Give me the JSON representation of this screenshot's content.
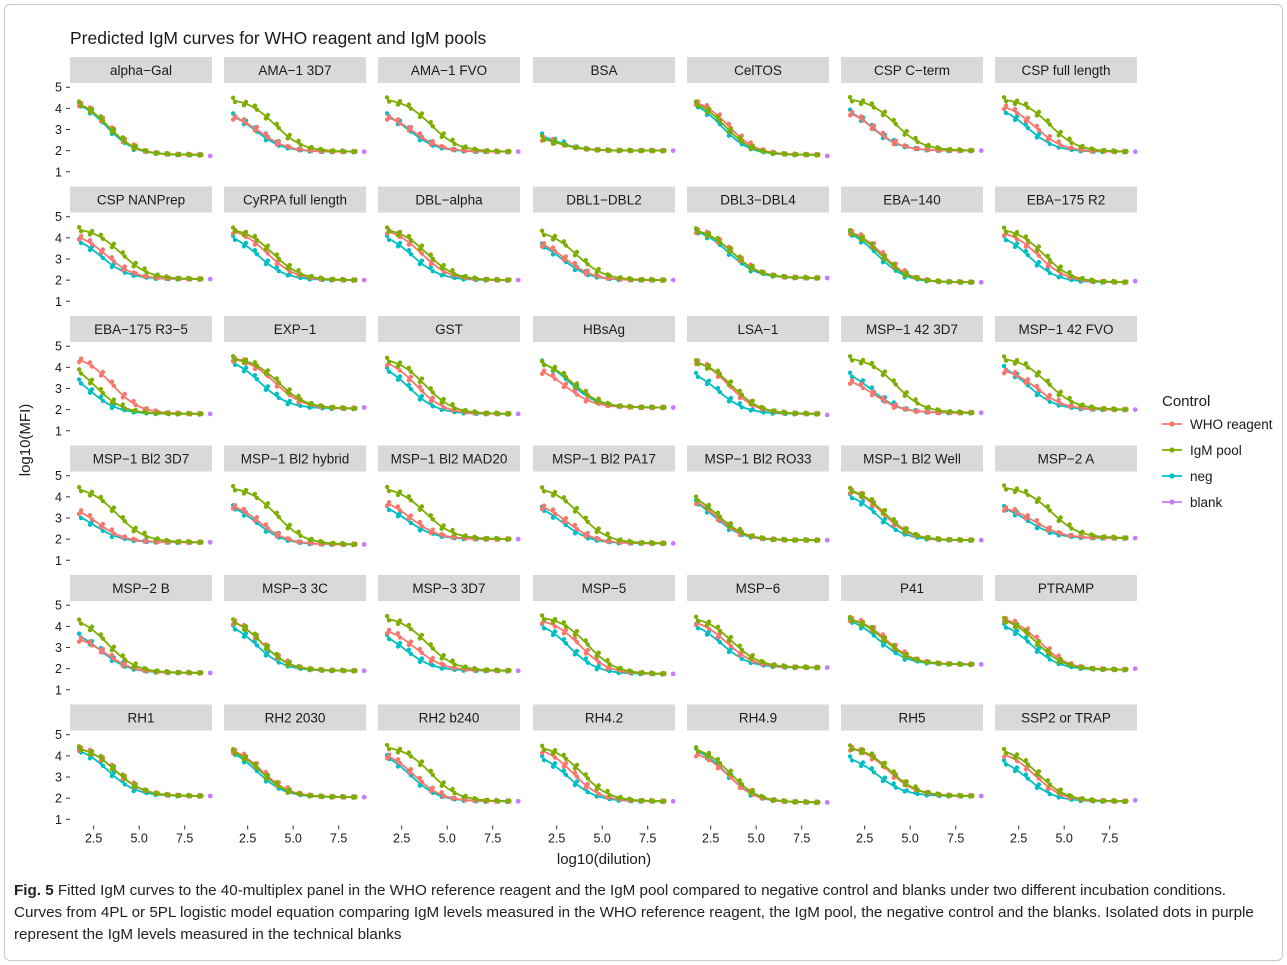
{
  "chart_data": {
    "type": "scatter",
    "title": "Predicted IgM curves for WHO reagent and IgM pools",
    "xlabel": "log10(dilution)",
    "ylabel": "log10(MFI)",
    "xticks": [
      "2.5",
      "5.0",
      "7.5"
    ],
    "yticks": [
      "1",
      "2",
      "3",
      "4",
      "5"
    ],
    "xlim": [
      1.2,
      9.0
    ],
    "ylim": [
      0.8,
      5.2
    ],
    "x_points": [
      1.7,
      2.3,
      2.9,
      3.5,
      4.1,
      4.7,
      5.3,
      5.9,
      6.5,
      7.1,
      7.7,
      8.3
    ],
    "blank_x": 8.9,
    "legend": {
      "title": "Control",
      "position": "right",
      "items": [
        {
          "key": "who",
          "label": "WHO reagent",
          "color": "#F8766D"
        },
        {
          "key": "igm",
          "label": "IgM pool",
          "color": "#7CAE00"
        },
        {
          "key": "neg",
          "label": "neg",
          "color": "#00BFC4"
        },
        {
          "key": "blank",
          "label": "blank",
          "color": "#C77CFF"
        }
      ]
    },
    "curve_model": "logistic: y = bottom + (top - bottom) / (1 + exp(slope * (x - midpoint)))",
    "panels": [
      {
        "name": "alpha−Gal",
        "bottom": 1.8,
        "blank": 1.75,
        "series": {
          "who": [
            4.5,
            3.3,
            1.3
          ],
          "igm": [
            4.5,
            3.3,
            1.3
          ],
          "neg": [
            4.5,
            3.2,
            1.3
          ]
        }
      },
      {
        "name": "AMA−1 3D7",
        "bottom": 1.95,
        "blank": 1.95,
        "series": {
          "who": [
            3.8,
            3.2,
            1.3
          ],
          "igm": [
            4.5,
            4.0,
            1.3
          ],
          "neg": [
            4.0,
            2.9,
            1.3
          ]
        }
      },
      {
        "name": "AMA−1 FVO",
        "bottom": 1.95,
        "blank": 1.95,
        "series": {
          "who": [
            3.8,
            3.2,
            1.3
          ],
          "igm": [
            4.5,
            4.1,
            1.3
          ],
          "neg": [
            4.0,
            2.9,
            1.3
          ]
        }
      },
      {
        "name": "BSA",
        "bottom": 2.0,
        "blank": 2.0,
        "series": {
          "who": [
            2.8,
            2.4,
            1.3
          ],
          "igm": [
            2.8,
            2.4,
            1.3
          ],
          "neg": [
            3.0,
            2.3,
            1.3
          ]
        }
      },
      {
        "name": "CelTOS",
        "bottom": 1.8,
        "blank": 1.75,
        "series": {
          "who": [
            4.5,
            3.5,
            1.3
          ],
          "igm": [
            4.5,
            3.3,
            1.3
          ],
          "neg": [
            4.5,
            3.1,
            1.3
          ]
        }
      },
      {
        "name": "CSP C−term",
        "bottom": 2.0,
        "blank": 2.0,
        "series": {
          "who": [
            4.1,
            3.0,
            1.3
          ],
          "igm": [
            4.5,
            4.2,
            1.3
          ],
          "neg": [
            4.2,
            2.9,
            1.3
          ]
        }
      },
      {
        "name": "CSP full length",
        "bottom": 1.95,
        "blank": 1.95,
        "series": {
          "who": [
            4.3,
            3.4,
            1.3
          ],
          "igm": [
            4.5,
            4.2,
            1.3
          ],
          "neg": [
            4.2,
            3.0,
            1.3
          ]
        }
      },
      {
        "name": "CSP NANPrep",
        "bottom": 2.05,
        "blank": 2.05,
        "series": {
          "who": [
            4.3,
            3.2,
            1.3
          ],
          "igm": [
            4.5,
            4.0,
            1.3
          ],
          "neg": [
            4.2,
            2.9,
            1.3
          ]
        }
      },
      {
        "name": "CyRPA full length",
        "bottom": 2.0,
        "blank": 2.0,
        "series": {
          "who": [
            4.5,
            3.6,
            1.3
          ],
          "igm": [
            4.5,
            3.9,
            1.3
          ],
          "neg": [
            4.3,
            3.1,
            1.3
          ]
        }
      },
      {
        "name": "DBL−alpha",
        "bottom": 2.0,
        "blank": 2.0,
        "series": {
          "who": [
            4.5,
            3.6,
            1.3
          ],
          "igm": [
            4.5,
            3.9,
            1.3
          ],
          "neg": [
            4.3,
            3.1,
            1.3
          ]
        }
      },
      {
        "name": "DBL1−DBL2",
        "bottom": 2.0,
        "blank": 2.0,
        "series": {
          "who": [
            4.0,
            3.0,
            1.3
          ],
          "igm": [
            4.4,
            3.6,
            1.3
          ],
          "neg": [
            4.0,
            2.8,
            1.3
          ]
        }
      },
      {
        "name": "DBL3−DBL4",
        "bottom": 2.1,
        "blank": 2.1,
        "series": {
          "who": [
            4.5,
            3.7,
            1.3
          ],
          "igm": [
            4.5,
            3.7,
            1.3
          ],
          "neg": [
            4.5,
            3.5,
            1.3
          ]
        }
      },
      {
        "name": "EBA−140",
        "bottom": 1.9,
        "blank": 1.9,
        "series": {
          "who": [
            4.5,
            3.5,
            1.3
          ],
          "igm": [
            4.5,
            3.4,
            1.3
          ],
          "neg": [
            4.5,
            3.2,
            1.3
          ]
        }
      },
      {
        "name": "EBA−175 R2",
        "bottom": 1.9,
        "blank": 1.95,
        "series": {
          "who": [
            4.4,
            3.6,
            1.3
          ],
          "igm": [
            4.5,
            3.9,
            1.3
          ],
          "neg": [
            4.3,
            3.1,
            1.3
          ]
        }
      },
      {
        "name": "EBA−175 R3−5",
        "bottom": 1.8,
        "blank": 1.8,
        "series": {
          "who": [
            4.6,
            3.5,
            1.3
          ],
          "igm": [
            4.4,
            2.6,
            1.3
          ],
          "neg": [
            4.0,
            2.3,
            1.3
          ]
        }
      },
      {
        "name": "EXP−1",
        "bottom": 2.05,
        "blank": 2.1,
        "series": {
          "who": [
            4.5,
            4.0,
            1.3
          ],
          "igm": [
            4.5,
            4.2,
            1.3
          ],
          "neg": [
            4.5,
            3.2,
            1.3
          ]
        }
      },
      {
        "name": "GST",
        "bottom": 1.8,
        "blank": 1.8,
        "series": {
          "who": [
            4.5,
            3.3,
            1.3
          ],
          "igm": [
            4.5,
            3.8,
            1.3
          ],
          "neg": [
            4.3,
            2.9,
            1.3
          ]
        }
      },
      {
        "name": "HBsAg",
        "bottom": 2.1,
        "blank": 2.1,
        "series": {
          "who": [
            4.1,
            3.0,
            1.3
          ],
          "igm": [
            4.4,
            3.4,
            1.3
          ],
          "neg": [
            4.5,
            3.2,
            1.3
          ]
        }
      },
      {
        "name": "LSA−1",
        "bottom": 1.8,
        "blank": 1.75,
        "series": {
          "who": [
            4.5,
            3.5,
            1.3
          ],
          "igm": [
            4.4,
            3.7,
            1.3
          ],
          "neg": [
            4.0,
            2.9,
            1.3
          ]
        }
      },
      {
        "name": "MSP−1 42 3D7",
        "bottom": 1.85,
        "blank": 1.85,
        "series": {
          "who": [
            3.6,
            3.0,
            1.3
          ],
          "igm": [
            4.5,
            4.2,
            1.3
          ],
          "neg": [
            4.0,
            2.9,
            1.3
          ]
        }
      },
      {
        "name": "MSP−1 42 FVO",
        "bottom": 2.0,
        "blank": 2.0,
        "series": {
          "who": [
            4.0,
            3.5,
            1.3
          ],
          "igm": [
            4.5,
            4.1,
            1.3
          ],
          "neg": [
            4.3,
            3.0,
            1.3
          ]
        }
      },
      {
        "name": "MSP−1 Bl2 3D7",
        "bottom": 1.85,
        "blank": 1.85,
        "series": {
          "who": [
            3.7,
            2.7,
            1.3
          ],
          "igm": [
            4.5,
            3.8,
            1.3
          ],
          "neg": [
            3.5,
            2.5,
            1.3
          ]
        }
      },
      {
        "name": "MSP−1 Bl2 hybrid",
        "bottom": 1.75,
        "blank": 1.75,
        "series": {
          "who": [
            3.8,
            3.2,
            1.3
          ],
          "igm": [
            4.5,
            4.1,
            1.3
          ],
          "neg": [
            3.8,
            3.0,
            1.3
          ]
        }
      },
      {
        "name": "MSP−1 Bl2 MAD20",
        "bottom": 2.0,
        "blank": 2.0,
        "series": {
          "who": [
            4.0,
            3.0,
            1.3
          ],
          "igm": [
            4.5,
            3.8,
            1.3
          ],
          "neg": [
            3.8,
            2.8,
            1.3
          ]
        }
      },
      {
        "name": "MSP−1 Bl2 PA17",
        "bottom": 1.8,
        "blank": 1.8,
        "series": {
          "who": [
            3.8,
            3.1,
            1.3
          ],
          "igm": [
            4.5,
            3.8,
            1.3
          ],
          "neg": [
            3.8,
            2.8,
            1.3
          ]
        }
      },
      {
        "name": "MSP−1 Bl2 RO33",
        "bottom": 1.95,
        "blank": 1.95,
        "series": {
          "who": [
            4.2,
            2.8,
            1.3
          ],
          "igm": [
            4.3,
            2.9,
            1.3
          ],
          "neg": [
            4.2,
            2.7,
            1.3
          ]
        }
      },
      {
        "name": "MSP−1 Bl2 Well",
        "bottom": 1.95,
        "blank": 1.95,
        "series": {
          "who": [
            4.5,
            3.5,
            1.3
          ],
          "igm": [
            4.5,
            3.6,
            1.3
          ],
          "neg": [
            4.3,
            3.2,
            1.3
          ]
        }
      },
      {
        "name": "MSP−2 A",
        "bottom": 2.05,
        "blank": 2.05,
        "series": {
          "who": [
            3.6,
            3.4,
            1.3
          ],
          "igm": [
            4.5,
            4.3,
            1.3
          ],
          "neg": [
            3.7,
            3.0,
            1.3
          ]
        }
      },
      {
        "name": "MSP−2 B",
        "bottom": 1.8,
        "blank": 1.8,
        "series": {
          "who": [
            3.6,
            3.2,
            1.3
          ],
          "igm": [
            4.5,
            3.3,
            1.3
          ],
          "neg": [
            3.9,
            2.9,
            1.3
          ]
        }
      },
      {
        "name": "MSP−3 3C",
        "bottom": 1.9,
        "blank": 1.9,
        "series": {
          "who": [
            4.5,
            3.3,
            1.3
          ],
          "igm": [
            4.5,
            3.3,
            1.3
          ],
          "neg": [
            4.3,
            3.0,
            1.3
          ]
        }
      },
      {
        "name": "MSP−3 3D7",
        "bottom": 1.9,
        "blank": 1.9,
        "series": {
          "who": [
            4.0,
            3.3,
            1.3
          ],
          "igm": [
            4.5,
            3.9,
            1.3
          ],
          "neg": [
            3.9,
            2.7,
            1.3
          ]
        }
      },
      {
        "name": "MSP−5",
        "bottom": 1.75,
        "blank": 1.75,
        "series": {
          "who": [
            4.4,
            3.8,
            1.3
          ],
          "igm": [
            4.5,
            4.2,
            1.3
          ],
          "neg": [
            4.3,
            3.2,
            1.3
          ]
        }
      },
      {
        "name": "MSP−6",
        "bottom": 2.05,
        "blank": 2.05,
        "series": {
          "who": [
            4.4,
            3.4,
            1.3
          ],
          "igm": [
            4.5,
            3.7,
            1.3
          ],
          "neg": [
            4.3,
            3.1,
            1.3
          ]
        }
      },
      {
        "name": "P41",
        "bottom": 2.2,
        "blank": 2.2,
        "series": {
          "who": [
            4.5,
            3.7,
            1.3
          ],
          "igm": [
            4.5,
            3.6,
            1.3
          ],
          "neg": [
            4.5,
            3.3,
            1.3
          ]
        }
      },
      {
        "name": "PTRAMP",
        "bottom": 1.95,
        "blank": 2.0,
        "series": {
          "who": [
            4.5,
            3.7,
            1.3
          ],
          "igm": [
            4.5,
            3.5,
            1.3
          ],
          "neg": [
            4.3,
            3.2,
            1.3
          ]
        }
      },
      {
        "name": "RH1",
        "bottom": 2.1,
        "blank": 2.1,
        "series": {
          "who": [
            4.5,
            3.7,
            1.3
          ],
          "igm": [
            4.5,
            3.7,
            1.3
          ],
          "neg": [
            4.5,
            3.3,
            1.3
          ]
        }
      },
      {
        "name": "RH2 2030",
        "bottom": 2.05,
        "blank": 2.05,
        "series": {
          "who": [
            4.5,
            3.3,
            1.3
          ],
          "igm": [
            4.5,
            3.2,
            1.3
          ],
          "neg": [
            4.5,
            3.0,
            1.3
          ]
        }
      },
      {
        "name": "RH2 b240",
        "bottom": 1.85,
        "blank": 1.85,
        "series": {
          "who": [
            4.3,
            3.2,
            1.3
          ],
          "igm": [
            4.5,
            4.1,
            1.3
          ],
          "neg": [
            4.3,
            3.0,
            1.3
          ]
        }
      },
      {
        "name": "RH4.2",
        "bottom": 1.85,
        "blank": 1.85,
        "series": {
          "who": [
            4.5,
            3.4,
            1.3
          ],
          "igm": [
            4.5,
            3.9,
            1.3
          ],
          "neg": [
            4.2,
            3.1,
            1.3
          ]
        }
      },
      {
        "name": "RH4.9",
        "bottom": 1.8,
        "blank": 1.8,
        "series": {
          "who": [
            4.3,
            3.5,
            1.3
          ],
          "igm": [
            4.5,
            3.6,
            1.3
          ],
          "neg": [
            4.5,
            3.4,
            1.3
          ]
        }
      },
      {
        "name": "RH5",
        "bottom": 2.1,
        "blank": 2.1,
        "series": {
          "who": [
            4.5,
            3.8,
            1.3
          ],
          "igm": [
            4.5,
            3.9,
            1.3
          ],
          "neg": [
            4.1,
            3.2,
            1.3
          ]
        }
      },
      {
        "name": "SSP2 or TRAP",
        "bottom": 1.85,
        "blank": 1.9,
        "series": {
          "who": [
            4.3,
            3.4,
            1.3
          ],
          "igm": [
            4.4,
            3.6,
            1.3
          ],
          "neg": [
            4.0,
            3.0,
            1.3
          ]
        }
      }
    ]
  },
  "caption": {
    "label": "Fig. 5",
    "text": "  Fitted IgM curves to the 40-multiplex panel in the WHO reference reagent and the IgM pool compared to negative control and blanks under two different incubation conditions. Curves from 4PL or 5PL logistic model equation comparing IgM levels measured in the WHO reference reagent, the IgM pool, the negative control and the blanks. Isolated dots in purple represent the IgM levels measured in the technical blanks"
  }
}
